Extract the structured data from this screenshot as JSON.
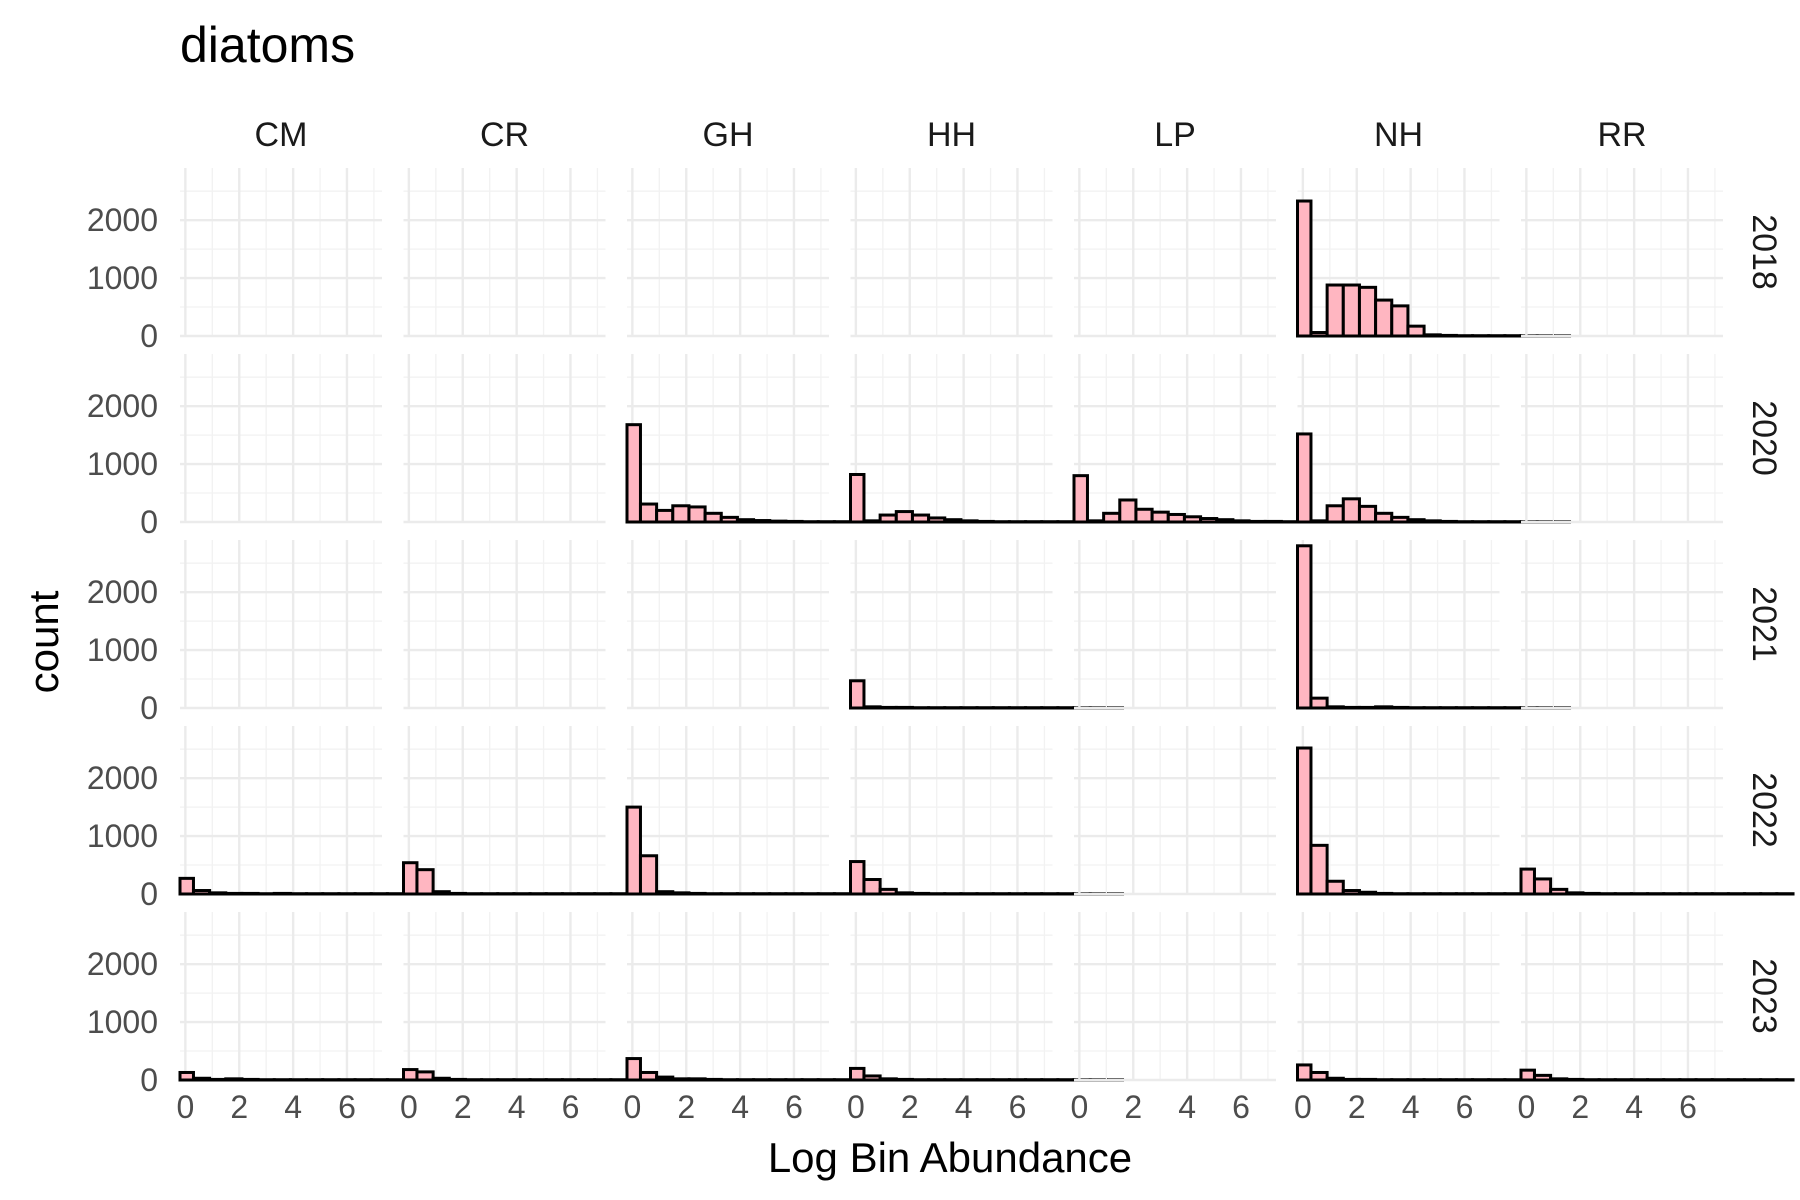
{
  "chart_data": {
    "type": "bar",
    "chart_kind": "faceted histogram",
    "title": "diatoms",
    "xlabel": "Log Bin Abundance",
    "ylabel": "count",
    "columns": [
      "CM",
      "CR",
      "GH",
      "HH",
      "LP",
      "NH",
      "RR"
    ],
    "rows": [
      "2018",
      "2020",
      "2021",
      "2022",
      "2023"
    ],
    "xlim": [
      -0.2,
      7.3
    ],
    "ylim": [
      0,
      2900
    ],
    "x_ticks": [
      0,
      2,
      4,
      6
    ],
    "y_ticks": [
      0,
      1000,
      2000
    ],
    "bin_start": -0.3,
    "bin_width": 0.6,
    "bar_fill": "#ffb6c1",
    "bar_outline": "#000000",
    "grid": true,
    "panels": [
      {
        "column": "NH",
        "row": "2018",
        "counts": [
          2330,
          60,
          880,
          880,
          840,
          620,
          520,
          170,
          20,
          10,
          5,
          5,
          5,
          5,
          5,
          5,
          5
        ]
      },
      {
        "column": "GH",
        "row": "2020",
        "counts": [
          1680,
          310,
          200,
          280,
          260,
          150,
          80,
          40,
          25,
          15,
          10,
          5,
          5,
          5,
          5,
          5,
          5
        ]
      },
      {
        "column": "HH",
        "row": "2020",
        "counts": [
          820,
          20,
          120,
          180,
          120,
          70,
          40,
          20,
          10,
          5,
          5,
          5,
          5,
          5,
          5,
          5,
          5
        ]
      },
      {
        "column": "LP",
        "row": "2020",
        "counts": [
          800,
          20,
          150,
          380,
          220,
          170,
          130,
          90,
          60,
          40,
          20,
          10,
          10,
          5,
          5,
          5,
          5
        ]
      },
      {
        "column": "NH",
        "row": "2020",
        "counts": [
          1520,
          20,
          280,
          400,
          270,
          150,
          80,
          40,
          20,
          10,
          5,
          5,
          5,
          5,
          5,
          5,
          5
        ]
      },
      {
        "column": "HH",
        "row": "2021",
        "counts": [
          470,
          20,
          10,
          10,
          5,
          5,
          5,
          5,
          5,
          5,
          5,
          5,
          5,
          5,
          5,
          5,
          5
        ]
      },
      {
        "column": "NH",
        "row": "2021",
        "counts": [
          2800,
          170,
          20,
          10,
          10,
          20,
          10,
          5,
          5,
          5,
          5,
          5,
          5,
          5,
          5,
          5,
          5
        ]
      },
      {
        "column": "CM",
        "row": "2022",
        "counts": [
          270,
          60,
          20,
          10,
          10,
          5,
          10,
          5,
          5,
          5,
          5,
          5,
          5,
          5,
          5,
          5,
          5
        ]
      },
      {
        "column": "CR",
        "row": "2022",
        "counts": [
          540,
          420,
          40,
          10,
          5,
          5,
          5,
          5,
          5,
          5,
          5,
          5,
          5,
          5,
          5,
          5,
          5
        ]
      },
      {
        "column": "GH",
        "row": "2022",
        "counts": [
          1500,
          660,
          40,
          20,
          10,
          5,
          5,
          5,
          5,
          5,
          5,
          5,
          5,
          5,
          5,
          5,
          5
        ]
      },
      {
        "column": "HH",
        "row": "2022",
        "counts": [
          560,
          250,
          80,
          20,
          10,
          5,
          5,
          5,
          5,
          5,
          5,
          5,
          5,
          5,
          5,
          5,
          5
        ]
      },
      {
        "column": "NH",
        "row": "2022",
        "counts": [
          2520,
          840,
          220,
          60,
          30,
          10,
          5,
          5,
          5,
          5,
          5,
          5,
          5,
          5,
          5,
          5,
          5
        ]
      },
      {
        "column": "RR",
        "row": "2022",
        "counts": [
          430,
          260,
          80,
          20,
          10,
          5,
          5,
          5,
          5,
          5,
          5,
          5,
          5,
          5,
          5,
          5,
          5
        ]
      },
      {
        "column": "CM",
        "row": "2023",
        "counts": [
          130,
          30,
          10,
          20,
          10,
          5,
          5,
          5,
          5,
          5,
          5,
          5,
          5,
          5,
          5,
          5,
          5
        ]
      },
      {
        "column": "CR",
        "row": "2023",
        "counts": [
          180,
          140,
          30,
          10,
          5,
          5,
          5,
          5,
          5,
          5,
          5,
          5,
          5,
          5,
          5,
          5,
          5
        ]
      },
      {
        "column": "GH",
        "row": "2023",
        "counts": [
          370,
          130,
          50,
          20,
          20,
          10,
          5,
          5,
          5,
          5,
          5,
          5,
          5,
          5,
          5,
          5,
          5
        ]
      },
      {
        "column": "HH",
        "row": "2023",
        "counts": [
          200,
          70,
          20,
          10,
          5,
          5,
          5,
          5,
          5,
          5,
          5,
          5,
          5,
          5,
          5,
          5,
          5
        ]
      },
      {
        "column": "NH",
        "row": "2023",
        "counts": [
          260,
          130,
          30,
          10,
          10,
          5,
          5,
          5,
          5,
          5,
          5,
          5,
          5,
          5,
          5,
          5,
          5
        ]
      },
      {
        "column": "RR",
        "row": "2023",
        "counts": [
          170,
          80,
          20,
          10,
          5,
          5,
          5,
          5,
          5,
          5,
          5,
          5,
          5,
          5,
          5,
          5,
          5
        ]
      }
    ]
  }
}
